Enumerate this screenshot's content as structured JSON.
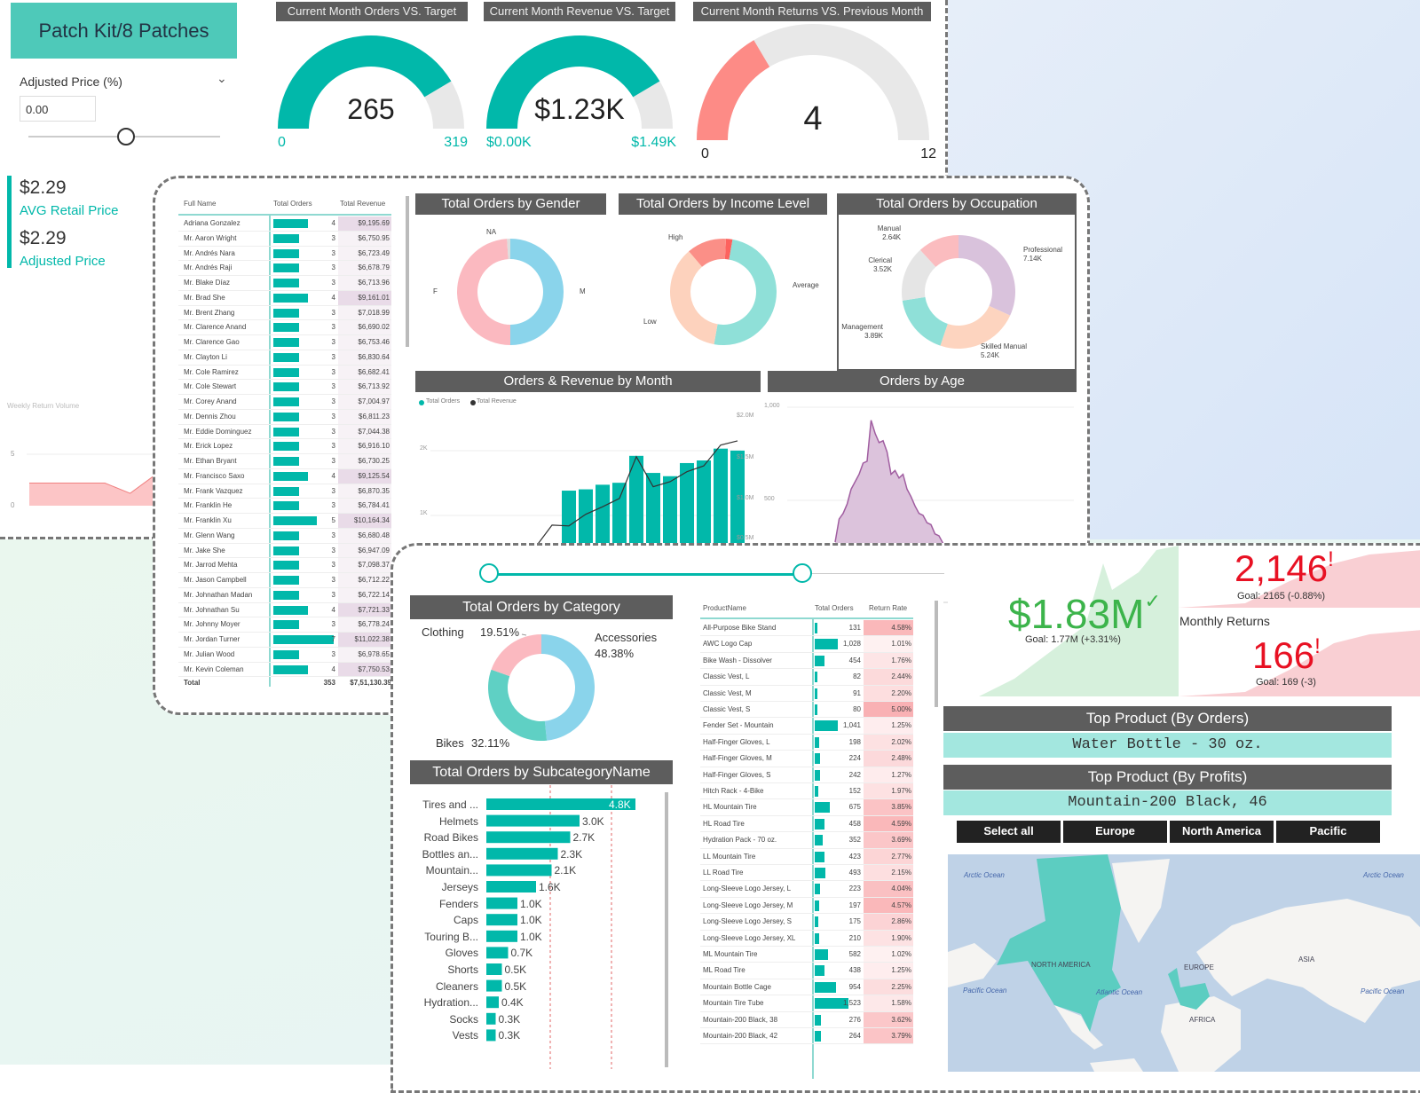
{
  "colors": {
    "teal": "#01B8AA",
    "header": "#5d5d5d",
    "salmon": "#FD8B86",
    "gauge_bg": "#e8e8e8",
    "kpi_green": "#3cb44b",
    "kpi_red": "#e81123",
    "age_purple": "#a05da0"
  },
  "sidebar": {
    "product_button": "Patch Kit/8 Patches",
    "adjusted_label": "Adjusted Price (%)",
    "adjusted_value": "0.00",
    "slider_value": 0,
    "avg_retail_value": "$2.29",
    "avg_retail_label": "AVG Retail Price",
    "adjusted_price_value": "$2.29",
    "adjusted_price_label": "Adjusted Price",
    "weekly_title": "Weekly Return Volume",
    "weekly_ticks": [
      "5",
      "0"
    ],
    "weekly_values": [
      2.2,
      2.2,
      2.2,
      2.2,
      1.2,
      3
    ]
  },
  "gauges": [
    {
      "title": "Current Month Orders VS. Target",
      "value": "265",
      "min": "0",
      "max": "319",
      "fraction": 0.83
    },
    {
      "title": "Current Month Revenue VS. Target",
      "value": "$1.23K",
      "min": "$0.00K",
      "max": "$1.49K",
      "fraction": 0.83
    },
    {
      "title": "Current Month Returns VS. Previous Month",
      "value": "4",
      "min": "0",
      "max": "12",
      "fraction": 0.33
    }
  ],
  "customers": {
    "headers": [
      "Full Name",
      "Total Orders",
      "Total Revenue"
    ],
    "rows": [
      [
        "Adriana Gonzalez",
        4,
        "$9,195.69"
      ],
      [
        "Mr. Aaron Wright",
        3,
        "$6,750.95"
      ],
      [
        "Mr. Andrés Nara",
        3,
        "$6,723.49"
      ],
      [
        "Mr. Andrés Raji",
        3,
        "$6,678.79"
      ],
      [
        "Mr. Blake Díaz",
        3,
        "$6,713.96"
      ],
      [
        "Mr. Brad She",
        4,
        "$9,161.01"
      ],
      [
        "Mr. Brent Zhang",
        3,
        "$7,018.99"
      ],
      [
        "Mr. Clarence Anand",
        3,
        "$6,690.02"
      ],
      [
        "Mr. Clarence Gao",
        3,
        "$6,753.46"
      ],
      [
        "Mr. Clayton Li",
        3,
        "$6,830.64"
      ],
      [
        "Mr. Cole Ramirez",
        3,
        "$6,682.41"
      ],
      [
        "Mr. Cole Stewart",
        3,
        "$6,713.92"
      ],
      [
        "Mr. Corey Anand",
        3,
        "$7,004.97"
      ],
      [
        "Mr. Dennis Zhou",
        3,
        "$6,811.23"
      ],
      [
        "Mr. Eddie Dominguez",
        3,
        "$7,044.38"
      ],
      [
        "Mr. Erick Lopez",
        3,
        "$6,916.10"
      ],
      [
        "Mr. Ethan Bryant",
        3,
        "$6,730.25"
      ],
      [
        "Mr. Francisco Saxo",
        4,
        "$9,125.54"
      ],
      [
        "Mr. Frank Vazquez",
        3,
        "$6,870.35"
      ],
      [
        "Mr. Franklin He",
        3,
        "$6,784.41"
      ],
      [
        "Mr. Franklin Xu",
        5,
        "$10,164.34"
      ],
      [
        "Mr. Glenn Wang",
        3,
        "$6,680.48"
      ],
      [
        "Mr. Jake She",
        3,
        "$6,947.09"
      ],
      [
        "Mr. Jarrod Mehta",
        3,
        "$7,098.37"
      ],
      [
        "Mr. Jason Campbell",
        3,
        "$6,712.22"
      ],
      [
        "Mr. Johnathan Madan",
        3,
        "$6,722.14"
      ],
      [
        "Mr. Johnathan Su",
        4,
        "$7,721.33"
      ],
      [
        "Mr. Johnny Moyer",
        3,
        "$6,778.24"
      ],
      [
        "Mr. Jordan Turner",
        7,
        "$11,022.38"
      ],
      [
        "Mr. Julian Wood",
        3,
        "$6,978.65"
      ],
      [
        "Mr. Kevin Coleman",
        4,
        "$7,750.53"
      ]
    ],
    "total": [
      "Total",
      "353",
      "$7,51,130.39"
    ]
  },
  "donuts": {
    "gender": {
      "title": "Total Orders by Gender",
      "slices": [
        {
          "label": "M",
          "value": 50,
          "color": "#8ad4eb"
        },
        {
          "label": "F",
          "value": 49,
          "color": "#fbb9c0"
        },
        {
          "label": "NA",
          "value": 1,
          "color": "#dddddd"
        }
      ]
    },
    "income": {
      "title": "Total Orders by Income Level",
      "slices": [
        {
          "label": "",
          "value": 2,
          "color": "#fd625e"
        },
        {
          "label": "Average",
          "value": 50,
          "color": "#8fe0d8"
        },
        {
          "label": "Low",
          "value": 36,
          "color": "#fdd2bd"
        },
        {
          "label": "High",
          "value": 12,
          "color": "#fb8f87"
        }
      ]
    },
    "occupation": {
      "title": "Total Orders by Occupation",
      "slices": [
        {
          "label": "Professional",
          "value_label": "7.14K",
          "value": 7.14,
          "color": "#d9c2dc"
        },
        {
          "label": "Skilled Manual",
          "value_label": "5.24K",
          "value": 5.24,
          "color": "#fdd4bf"
        },
        {
          "label": "Management",
          "value_label": "3.89K",
          "value": 3.89,
          "color": "#8fe0d8"
        },
        {
          "label": "Clerical",
          "value_label": "3.52K",
          "value": 3.52,
          "color": "#e5e5e5"
        },
        {
          "label": "Manual",
          "value_label": "2.64K",
          "value": 2.64,
          "color": "#fbbcbf"
        }
      ]
    },
    "category": {
      "title": "Total Orders by Category",
      "slices": [
        {
          "label": "Accessories",
          "value_label": "48.38%",
          "value": 48.38,
          "color": "#8ad4eb"
        },
        {
          "label": "Bikes",
          "value_label": "32.11%",
          "value": 32.11,
          "color": "#5fd0c4"
        },
        {
          "label": "Clothing",
          "value_label": "19.51%",
          "value": 19.51,
          "color": "#fbb9c0"
        }
      ]
    }
  },
  "chart_data": [
    {
      "type": "bar",
      "title": "Orders & Revenue by Month",
      "legend": [
        "Total Orders",
        "Total Revenue"
      ],
      "y_ticks": [
        "2K",
        "1K"
      ],
      "y2_ticks": [
        "$2.0M",
        "$1.5M",
        "$1.0M",
        "$0.5M"
      ],
      "series": [
        {
          "name": "Total Orders",
          "values": [
            null,
            null,
            null,
            null,
            null,
            null,
            null,
            null,
            null,
            1.54,
            1.56,
            1.63,
            1.66,
            2.07,
            1.81,
            1.76,
            1.96,
            2.0,
            2.18,
            2.15
          ]
        },
        {
          "name": "Total Revenue",
          "values": [
            0.33,
            0.41,
            0.44,
            0.45,
            0.47,
            0.49,
            0.54,
            0.54,
            0.81,
            0.8,
            0.94,
            1.03,
            1.13,
            1.63,
            1.27,
            1.33,
            1.45,
            1.52,
            1.77,
            1.82
          ]
        }
      ]
    },
    {
      "type": "area",
      "title": "Orders by Age",
      "y_ticks": [
        "1,000",
        "500"
      ],
      "ylim": [
        0,
        1000
      ],
      "values": [
        276,
        400,
        430,
        480,
        560,
        600,
        640,
        700,
        710,
        930,
        860,
        810,
        820,
        760,
        640,
        660,
        620,
        640,
        560,
        520,
        470,
        430,
        420,
        380,
        370,
        320,
        310,
        270,
        230,
        180,
        120,
        60,
        20
      ]
    },
    {
      "type": "bar",
      "title": "Total Orders by SubcategoryName",
      "categories": [
        "Tires and ...",
        "Helmets",
        "Road Bikes",
        "Bottles an...",
        "Mountain...",
        "Jerseys",
        "Fenders",
        "Caps",
        "Touring B...",
        "Gloves",
        "Shorts",
        "Cleaners",
        "Hydration...",
        "Socks",
        "Vests"
      ],
      "values": [
        4.8,
        3.0,
        2.7,
        2.3,
        2.1,
        1.6,
        1.0,
        1.0,
        1.0,
        0.7,
        0.5,
        0.5,
        0.4,
        0.3,
        0.3
      ],
      "labels": [
        "4.8K",
        "3.0K",
        "2.7K",
        "2.3K",
        "2.1K",
        "1.6K",
        "1.0K",
        "1.0K",
        "1.0K",
        "0.7K",
        "0.5K",
        "0.5K",
        "0.4K",
        "0.3K",
        "0.3K"
      ]
    }
  ],
  "products": {
    "headers": [
      "ProductName",
      "Total Orders",
      "Return Rate"
    ],
    "rows": [
      [
        "All-Purpose Bike Stand",
        "131",
        4.58
      ],
      [
        "AWC Logo Cap",
        "1,028",
        1.01
      ],
      [
        "Bike Wash - Dissolver",
        "454",
        1.76
      ],
      [
        "Classic Vest, L",
        "82",
        2.44
      ],
      [
        "Classic Vest, M",
        "91",
        2.2
      ],
      [
        "Classic Vest, S",
        "80",
        5.0
      ],
      [
        "Fender Set - Mountain",
        "1,041",
        1.25
      ],
      [
        "Half-Finger Gloves, L",
        "198",
        2.02
      ],
      [
        "Half-Finger Gloves, M",
        "224",
        2.48
      ],
      [
        "Half-Finger Gloves, S",
        "242",
        1.27
      ],
      [
        "Hitch Rack - 4-Bike",
        "152",
        1.97
      ],
      [
        "HL Mountain Tire",
        "675",
        3.85
      ],
      [
        "HL Road Tire",
        "458",
        4.59
      ],
      [
        "Hydration Pack - 70 oz.",
        "352",
        3.69
      ],
      [
        "LL Mountain Tire",
        "423",
        2.77
      ],
      [
        "LL Road Tire",
        "493",
        2.15
      ],
      [
        "Long-Sleeve Logo Jersey, L",
        "223",
        4.04
      ],
      [
        "Long-Sleeve Logo Jersey, M",
        "197",
        4.57
      ],
      [
        "Long-Sleeve Logo Jersey, S",
        "175",
        2.86
      ],
      [
        "Long-Sleeve Logo Jersey, XL",
        "210",
        1.9
      ],
      [
        "ML Mountain Tire",
        "582",
        1.02
      ],
      [
        "ML Road Tire",
        "438",
        1.25
      ],
      [
        "Mountain Bottle Cage",
        "954",
        2.25
      ],
      [
        "Mountain Tire Tube",
        "1,523",
        1.58
      ],
      [
        "Mountain-200 Black, 38",
        "276",
        3.62
      ],
      [
        "Mountain-200 Black, 42",
        "264",
        3.79
      ]
    ]
  },
  "kpis": {
    "revenue": {
      "value": "$1.83M",
      "goal": "Goal: 1.77M (+3.31%)"
    },
    "orders": {
      "value": "2,146",
      "goal": "Goal: 2165 (-0.88%)"
    },
    "returns": {
      "label": "Monthly Returns",
      "value": "166",
      "goal": "Goal: 169 (-3)"
    }
  },
  "top_products": [
    {
      "title": "Top Product (By Orders)",
      "value": "Water Bottle - 30 oz."
    },
    {
      "title": "Top Product (By Profits)",
      "value": "Mountain-200 Black, 46"
    }
  ],
  "regions": [
    "Select all",
    "Europe",
    "North America",
    "Pacific"
  ],
  "map": {
    "labels": [
      "Arctic Ocean",
      "Arctic Ocean",
      "NORTH AMERICA",
      "EUROPE",
      "ASIA",
      "Pacific Ocean",
      "Atlantic Ocean",
      "Pacific Ocean",
      "AFRICA"
    ]
  }
}
